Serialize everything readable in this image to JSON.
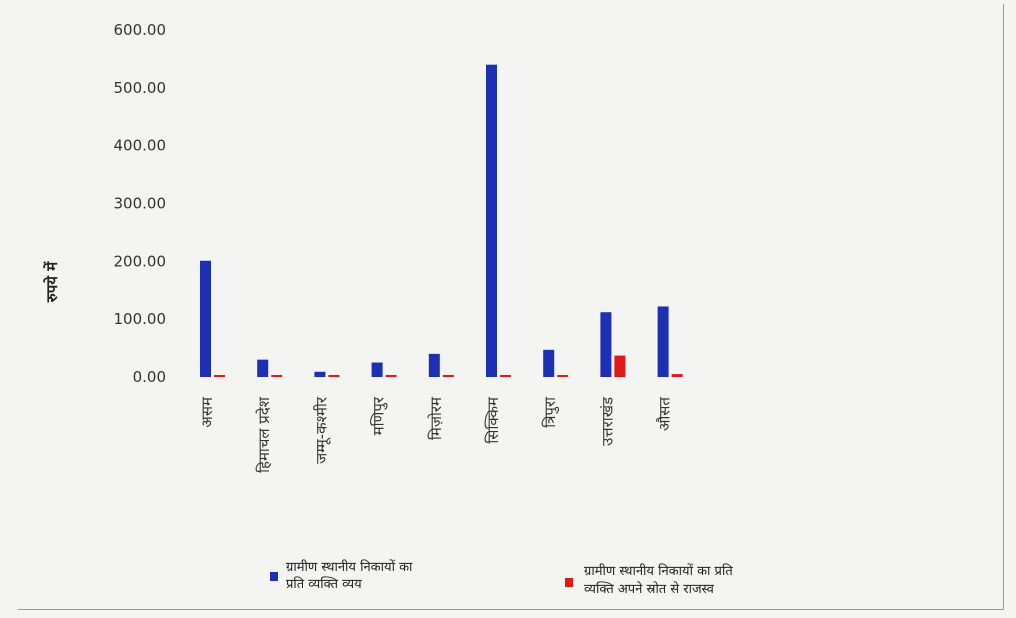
{
  "chart_data": {
    "type": "bar",
    "title": "",
    "xlabel": "",
    "ylabel": "रुपये में",
    "ylim": [
      0,
      600
    ],
    "yticks": [
      "0.00",
      "100.00",
      "200.00",
      "300.00",
      "400.00",
      "500.00",
      "600.00"
    ],
    "categories": [
      "असम",
      "हिमाचल प्रदेश",
      "जम्मू-कश्मीर",
      "मणिपुर",
      "मिज़ोरम",
      "सिक्किम",
      "त्रिपुरा",
      "उत्तराखंड",
      "औसत"
    ],
    "series": [
      {
        "name": "ग्रामीण स्थानीय निकायों का प्रति व्यक्ति व्यय",
        "color": "#1d2fb3",
        "values": [
          201,
          30,
          9,
          25,
          40,
          540,
          47,
          112,
          122
        ]
      },
      {
        "name": "ग्रामीण स्थानीय निकायों का प्रति व्यक्ति अपने स्रोत से राजस्व",
        "color": "#e01818",
        "values": [
          0,
          1,
          0,
          1.5,
          0,
          1.5,
          0,
          37,
          5
        ]
      }
    ],
    "legend": {
      "position": "bottom",
      "lines": [
        [
          "ग्रामीण स्थानीय निकायों का",
          "प्रति व्यक्ति व्यय"
        ],
        [
          "ग्रामीण स्थानीय निकायों का प्रति",
          "व्यक्ति अपने स्रोत से राजस्व"
        ]
      ]
    }
  }
}
